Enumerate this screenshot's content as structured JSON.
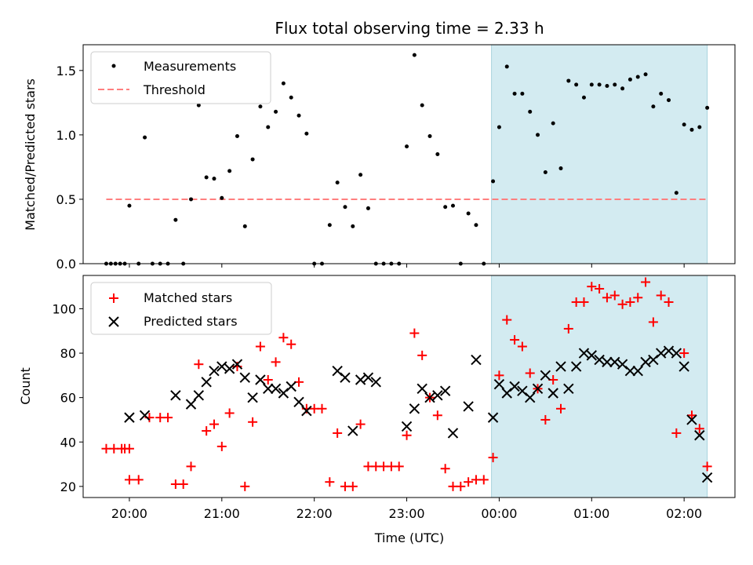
{
  "chart_data": [
    {
      "type": "scatter",
      "panel": "top",
      "title": "Flux total observing time = 2.33 h",
      "ylabel": "Matched/Predicted stars",
      "xlim": [
        "19:30",
        "02:33"
      ],
      "ylim": [
        0,
        1.7
      ],
      "yticks": [
        "0.0",
        "0.5",
        "1.0",
        "1.5"
      ],
      "legend": "top-left",
      "legend_entries": [
        "Measurements",
        "Threshold"
      ],
      "colors": {
        "measurements": "#000000",
        "threshold": "#ff7f7f",
        "highlight": "#d3ebf1"
      },
      "highlight_range": [
        "23:55",
        "02:15"
      ],
      "threshold": {
        "value": 0.5,
        "x_start": "19:45",
        "x_end": "02:15"
      },
      "series": [
        {
          "name": "Measurements",
          "points": [
            [
              "19:45",
              0
            ],
            [
              "19:48",
              0
            ],
            [
              "19:51",
              0
            ],
            [
              "19:54",
              0
            ],
            [
              "19:57",
              0
            ],
            [
              "20:00",
              0.45
            ],
            [
              "20:06",
              0
            ],
            [
              "20:10",
              0.98
            ],
            [
              "20:15",
              0
            ],
            [
              "20:20",
              0
            ],
            [
              "20:25",
              0
            ],
            [
              "20:30",
              0.34
            ],
            [
              "20:35",
              0
            ],
            [
              "20:40",
              0.5
            ],
            [
              "20:45",
              1.23
            ],
            [
              "20:50",
              0.67
            ],
            [
              "20:55",
              0.66
            ],
            [
              "21:00",
              0.51
            ],
            [
              "21:05",
              0.72
            ],
            [
              "21:10",
              0.99
            ],
            [
              "21:15",
              0.29
            ],
            [
              "21:20",
              0.81
            ],
            [
              "21:25",
              1.22
            ],
            [
              "21:30",
              1.06
            ],
            [
              "21:35",
              1.18
            ],
            [
              "21:40",
              1.4
            ],
            [
              "21:45",
              1.29
            ],
            [
              "21:50",
              1.15
            ],
            [
              "21:55",
              1.01
            ],
            [
              "22:00",
              0
            ],
            [
              "22:05",
              0
            ],
            [
              "22:10",
              0.3
            ],
            [
              "22:15",
              0.63
            ],
            [
              "22:20",
              0.44
            ],
            [
              "22:25",
              0.29
            ],
            [
              "22:30",
              0.69
            ],
            [
              "22:35",
              0.43
            ],
            [
              "22:40",
              0
            ],
            [
              "22:45",
              0
            ],
            [
              "22:50",
              0
            ],
            [
              "22:55",
              0
            ],
            [
              "23:00",
              0.91
            ],
            [
              "23:05",
              1.62
            ],
            [
              "23:10",
              1.23
            ],
            [
              "23:15",
              0.99
            ],
            [
              "23:20",
              0.85
            ],
            [
              "23:25",
              0.44
            ],
            [
              "23:30",
              0.45
            ],
            [
              "23:35",
              0
            ],
            [
              "23:40",
              0.39
            ],
            [
              "23:45",
              0.3
            ],
            [
              "23:50",
              0
            ],
            [
              "23:56",
              0.64
            ],
            [
              "00:00",
              1.06
            ],
            [
              "00:05",
              1.53
            ],
            [
              "00:10",
              1.32
            ],
            [
              "00:15",
              1.32
            ],
            [
              "00:20",
              1.18
            ],
            [
              "00:25",
              1.0
            ],
            [
              "00:30",
              0.71
            ],
            [
              "00:35",
              1.09
            ],
            [
              "00:40",
              0.74
            ],
            [
              "00:45",
              1.42
            ],
            [
              "00:50",
              1.39
            ],
            [
              "00:55",
              1.29
            ],
            [
              "01:00",
              1.39
            ],
            [
              "01:05",
              1.39
            ],
            [
              "01:10",
              1.38
            ],
            [
              "01:15",
              1.39
            ],
            [
              "01:20",
              1.36
            ],
            [
              "01:25",
              1.43
            ],
            [
              "01:30",
              1.45
            ],
            [
              "01:35",
              1.47
            ],
            [
              "01:40",
              1.22
            ],
            [
              "01:45",
              1.32
            ],
            [
              "01:50",
              1.27
            ],
            [
              "01:55",
              0.55
            ],
            [
              "02:00",
              1.08
            ],
            [
              "02:05",
              1.04
            ],
            [
              "02:10",
              1.06
            ],
            [
              "02:15",
              1.21
            ]
          ]
        }
      ]
    },
    {
      "type": "scatter",
      "panel": "bottom",
      "xlabel": "Time (UTC)",
      "ylabel": "Count",
      "xlim": [
        "19:30",
        "02:33"
      ],
      "ylim": [
        15,
        115
      ],
      "xticks": [
        "20:00",
        "21:00",
        "22:00",
        "23:00",
        "00:00",
        "01:00",
        "02:00"
      ],
      "yticks": [
        "20",
        "40",
        "60",
        "80",
        "100"
      ],
      "legend": "top-left",
      "legend_entries": [
        "Matched stars",
        "Predicted stars"
      ],
      "colors": {
        "matched": "#ff0000",
        "predicted": "#000000",
        "highlight": "#d3ebf1"
      },
      "highlight_range": [
        "23:55",
        "02:15"
      ],
      "series": [
        {
          "name": "Matched stars",
          "points": [
            [
              "19:45",
              37
            ],
            [
              "19:50",
              37
            ],
            [
              "19:55",
              37
            ],
            [
              "20:00",
              37
            ],
            [
              "19:57",
              37
            ],
            [
              "20:00",
              23
            ],
            [
              "20:06",
              23
            ],
            [
              "20:13",
              51
            ],
            [
              "20:20",
              51
            ],
            [
              "20:25",
              51
            ],
            [
              "20:30",
              21
            ],
            [
              "20:35",
              21
            ],
            [
              "20:40",
              29
            ],
            [
              "20:45",
              75
            ],
            [
              "20:50",
              45
            ],
            [
              "20:55",
              48
            ],
            [
              "21:00",
              38
            ],
            [
              "21:05",
              53
            ],
            [
              "21:10",
              74
            ],
            [
              "21:15",
              20
            ],
            [
              "21:20",
              49
            ],
            [
              "21:25",
              83
            ],
            [
              "21:30",
              68
            ],
            [
              "21:35",
              76
            ],
            [
              "21:40",
              87
            ],
            [
              "21:45",
              84
            ],
            [
              "21:50",
              67
            ],
            [
              "21:55",
              55
            ],
            [
              "22:00",
              55
            ],
            [
              "22:05",
              55
            ],
            [
              "22:10",
              22
            ],
            [
              "22:15",
              44
            ],
            [
              "22:20",
              20
            ],
            [
              "22:25",
              20
            ],
            [
              "22:30",
              48
            ],
            [
              "22:35",
              29
            ],
            [
              "22:40",
              29
            ],
            [
              "22:45",
              29
            ],
            [
              "22:50",
              29
            ],
            [
              "22:55",
              29
            ],
            [
              "23:00",
              43
            ],
            [
              "23:05",
              89
            ],
            [
              "23:10",
              79
            ],
            [
              "23:15",
              60
            ],
            [
              "23:20",
              52
            ],
            [
              "23:25",
              28
            ],
            [
              "23:30",
              20
            ],
            [
              "23:35",
              20
            ],
            [
              "23:40",
              22
            ],
            [
              "23:45",
              23
            ],
            [
              "23:50",
              23
            ],
            [
              "23:56",
              33
            ],
            [
              "00:00",
              70
            ],
            [
              "00:05",
              95
            ],
            [
              "00:10",
              86
            ],
            [
              "00:15",
              83
            ],
            [
              "00:20",
              71
            ],
            [
              "00:25",
              64
            ],
            [
              "00:30",
              50
            ],
            [
              "00:35",
              68
            ],
            [
              "00:40",
              55
            ],
            [
              "00:45",
              91
            ],
            [
              "00:50",
              103
            ],
            [
              "00:55",
              103
            ],
            [
              "01:00",
              110
            ],
            [
              "01:05",
              109
            ],
            [
              "01:10",
              105
            ],
            [
              "01:15",
              106
            ],
            [
              "01:20",
              102
            ],
            [
              "01:25",
              103
            ],
            [
              "01:30",
              105
            ],
            [
              "01:35",
              112
            ],
            [
              "01:40",
              94
            ],
            [
              "01:45",
              106
            ],
            [
              "01:50",
              103
            ],
            [
              "01:55",
              44
            ],
            [
              "02:00",
              80
            ],
            [
              "02:05",
              52
            ],
            [
              "02:10",
              46
            ],
            [
              "02:15",
              29
            ]
          ]
        },
        {
          "name": "Predicted stars",
          "points": [
            [
              "20:00",
              51
            ],
            [
              "20:10",
              52
            ],
            [
              "20:30",
              61
            ],
            [
              "20:40",
              57
            ],
            [
              "20:45",
              61
            ],
            [
              "20:50",
              67
            ],
            [
              "20:55",
              72
            ],
            [
              "21:00",
              74
            ],
            [
              "21:05",
              73
            ],
            [
              "21:10",
              75
            ],
            [
              "21:15",
              69
            ],
            [
              "21:20",
              60
            ],
            [
              "21:25",
              68
            ],
            [
              "21:30",
              64
            ],
            [
              "21:35",
              64
            ],
            [
              "21:40",
              62
            ],
            [
              "21:45",
              65
            ],
            [
              "21:50",
              58
            ],
            [
              "21:55",
              54
            ],
            [
              "22:15",
              72
            ],
            [
              "22:20",
              69
            ],
            [
              "22:25",
              45
            ],
            [
              "22:30",
              68
            ],
            [
              "22:35",
              69
            ],
            [
              "22:40",
              67
            ],
            [
              "23:00",
              47
            ],
            [
              "23:05",
              55
            ],
            [
              "23:10",
              64
            ],
            [
              "23:15",
              60
            ],
            [
              "23:20",
              61
            ],
            [
              "23:25",
              63
            ],
            [
              "23:30",
              44
            ],
            [
              "23:40",
              56
            ],
            [
              "23:45",
              77
            ],
            [
              "23:56",
              51
            ],
            [
              "00:00",
              66
            ],
            [
              "00:05",
              62
            ],
            [
              "00:10",
              65
            ],
            [
              "00:15",
              63
            ],
            [
              "00:20",
              60
            ],
            [
              "00:25",
              64
            ],
            [
              "00:30",
              70
            ],
            [
              "00:35",
              62
            ],
            [
              "00:40",
              74
            ],
            [
              "00:45",
              64
            ],
            [
              "00:50",
              74
            ],
            [
              "00:55",
              80
            ],
            [
              "01:00",
              79
            ],
            [
              "01:05",
              77
            ],
            [
              "01:10",
              76
            ],
            [
              "01:15",
              76
            ],
            [
              "01:20",
              75
            ],
            [
              "01:25",
              72
            ],
            [
              "01:30",
              72
            ],
            [
              "01:35",
              76
            ],
            [
              "01:40",
              77
            ],
            [
              "01:45",
              80
            ],
            [
              "01:50",
              81
            ],
            [
              "01:55",
              80
            ],
            [
              "02:00",
              74
            ],
            [
              "02:05",
              50
            ],
            [
              "02:10",
              43
            ],
            [
              "02:15",
              24
            ]
          ]
        }
      ]
    }
  ]
}
